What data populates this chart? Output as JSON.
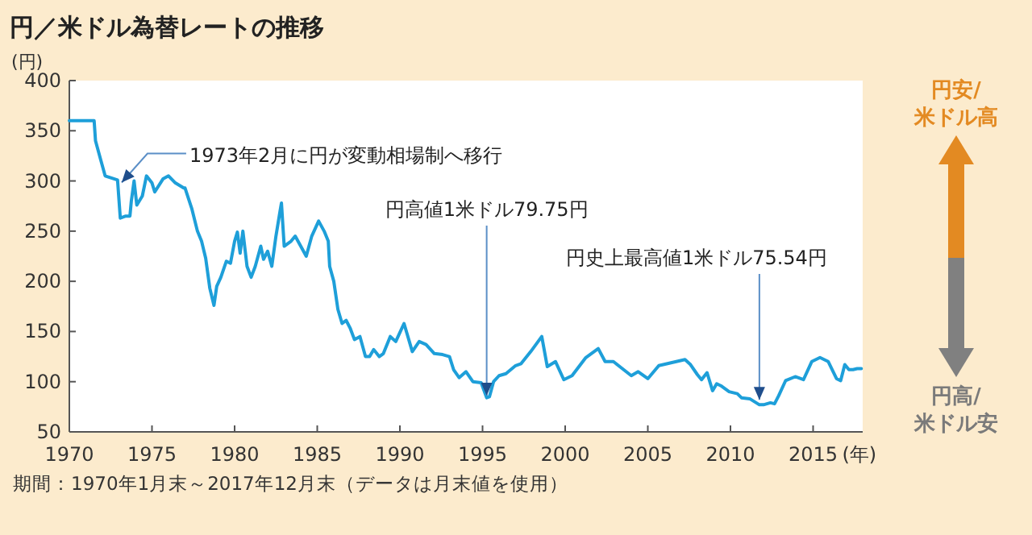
{
  "chart_data": {
    "type": "line",
    "title": "円／米ドル為替レートの推移",
    "ylabel": "(円)",
    "xlabel": "(年)",
    "xlim": [
      "1970-01",
      "2018-01"
    ],
    "ylim": [
      50,
      400
    ],
    "xticks": [
      {
        "value": "1970",
        "label": "1970"
      },
      {
        "value": "1975",
        "label": "1975"
      },
      {
        "value": "1980",
        "label": "1980"
      },
      {
        "value": "1985",
        "label": "1985"
      },
      {
        "value": "1990",
        "label": "1990"
      },
      {
        "value": "1995",
        "label": "1995"
      },
      {
        "value": "2000",
        "label": "2000"
      },
      {
        "value": "2005",
        "label": "2005"
      },
      {
        "value": "2010",
        "label": "2010"
      },
      {
        "value": "2015",
        "label": "2015"
      }
    ],
    "yticks": [
      50,
      100,
      150,
      200,
      250,
      300,
      350,
      400
    ],
    "grid": false,
    "series": [
      {
        "color": "#1e9fd9",
        "x": [
          "1970-01",
          "1971-07",
          "1971-08",
          "1971-12",
          "1972-03",
          "1972-12",
          "1973-02",
          "1973-06",
          "1973-09",
          "1973-10",
          "1973-12",
          "1974-02",
          "1974-06",
          "1974-09",
          "1975-01",
          "1975-03",
          "1975-09",
          "1976-01",
          "1976-06",
          "1976-12",
          "1977-01",
          "1977-06",
          "1977-10",
          "1978-01",
          "1978-04",
          "1978-07",
          "1978-10",
          "1978-12",
          "1979-03",
          "1979-07",
          "1979-10",
          "1980-01",
          "1980-03",
          "1980-05",
          "1980-07",
          "1980-10",
          "1981-01",
          "1981-04",
          "1981-08",
          "1981-10",
          "1982-01",
          "1982-04",
          "1982-07",
          "1982-10",
          "1982-11",
          "1983-01",
          "1983-06",
          "1983-09",
          "1984-01",
          "1984-05",
          "1984-09",
          "1985-02",
          "1985-06",
          "1985-09",
          "1985-10",
          "1986-01",
          "1986-04",
          "1986-07",
          "1986-10",
          "1987-01",
          "1987-04",
          "1987-08",
          "1987-12",
          "1988-03",
          "1988-06",
          "1988-10",
          "1989-01",
          "1989-06",
          "1989-10",
          "1990-04",
          "1990-10",
          "1991-03",
          "1991-08",
          "1992-02",
          "1992-08",
          "1993-01",
          "1993-04",
          "1993-08",
          "1994-01",
          "1994-06",
          "1994-12",
          "1995-04",
          "1995-06",
          "1995-09",
          "1996-01",
          "1996-06",
          "1997-01",
          "1997-05",
          "1997-12",
          "1998-08",
          "1998-12",
          "1999-06",
          "1999-12",
          "2000-06",
          "2001-04",
          "2002-01",
          "2002-06",
          "2002-12",
          "2004-01",
          "2004-06",
          "2005-01",
          "2005-09",
          "2007-04",
          "2007-08",
          "2008-01",
          "2008-04",
          "2008-08",
          "2008-12",
          "2009-03",
          "2009-06",
          "2009-12",
          "2010-06",
          "2010-09",
          "2011-03",
          "2011-10",
          "2012-01",
          "2012-06",
          "2012-09",
          "2012-12",
          "2013-05",
          "2013-12",
          "2014-06",
          "2014-12",
          "2015-06",
          "2015-12",
          "2016-06",
          "2016-09",
          "2016-12",
          "2017-03",
          "2017-06",
          "2017-09",
          "2017-12"
        ],
        "values": [
          360,
          360,
          340,
          320,
          305,
          301,
          263,
          265,
          265,
          280,
          300,
          276,
          285,
          305,
          298,
          289,
          302,
          305,
          298,
          293,
          293,
          272,
          250,
          240,
          223,
          193,
          176,
          195,
          204,
          220,
          218,
          240,
          249,
          228,
          250,
          215,
          204,
          215,
          235,
          222,
          230,
          215,
          245,
          270,
          278,
          235,
          240,
          245,
          235,
          225,
          245,
          260,
          250,
          240,
          215,
          200,
          172,
          158,
          161,
          153,
          142,
          145,
          125,
          125,
          132,
          125,
          128,
          145,
          140,
          158,
          130,
          140,
          137,
          128,
          127,
          125,
          112,
          104,
          110,
          100,
          99,
          84,
          85,
          100,
          106,
          108,
          116,
          118,
          130,
          145,
          115,
          120,
          102,
          106,
          124,
          133,
          120,
          120,
          106,
          110,
          103,
          116,
          122,
          117,
          107,
          102,
          109,
          91,
          98,
          96,
          90,
          88,
          84,
          83,
          77,
          77,
          79,
          78,
          86,
          101,
          105,
          102,
          120,
          124,
          120,
          103,
          101,
          117,
          112,
          112,
          113,
          113
        ]
      }
    ],
    "annotations": [
      {
        "text": "1973年2月に円が変動相場制へ移行",
        "x": "1973-03",
        "y": 292
      },
      {
        "text": "円高値1米ドル79.75円",
        "x": "1995-04",
        "y": 79.75
      },
      {
        "text": "円史上最高値1米ドル75.54円",
        "x": "2011-10",
        "y": 75.54
      },
      "円安/米ドル高",
      "円高/米ドル安",
      "期間：1970年1月末～2017年12月末（データは月末値を使用）"
    ]
  }
}
